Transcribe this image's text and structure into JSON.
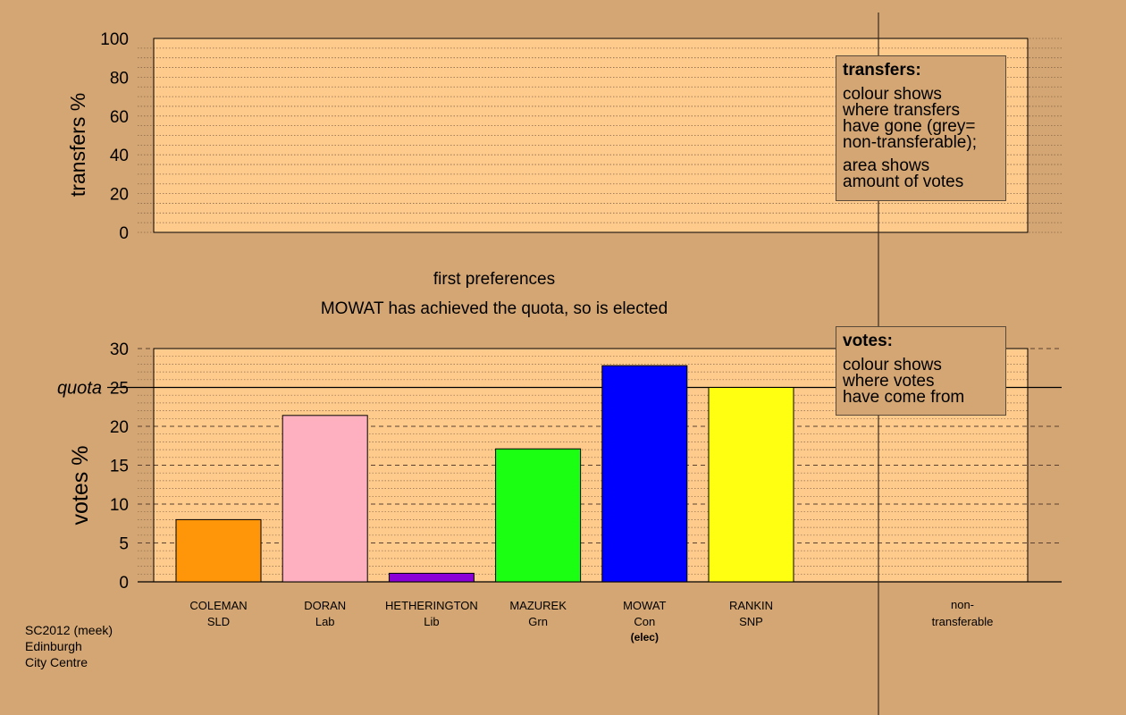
{
  "colors": {
    "background": "#d4a673",
    "plot_background": "#fecb8d",
    "coleman": "#ff9509",
    "doran": "#ffb0c0",
    "hetherington": "#8b00d6",
    "mazurek": "#1bff12",
    "mowat": "#0000ff",
    "rankin": "#ffff12"
  },
  "transfers_note": {
    "title": "transfers:",
    "lines_a": [
      "colour shows",
      "where transfers",
      "have gone (grey=",
      "non-transferable);"
    ],
    "lines_b": [
      "area shows",
      "amount of votes"
    ]
  },
  "votes_note": {
    "title": "votes:",
    "lines": [
      "colour shows",
      "where votes",
      "have come from"
    ]
  },
  "source": [
    "SC2012 (meek)",
    "Edinburgh",
    "City Centre"
  ],
  "chart_data": [
    {
      "type": "bar",
      "ylabel": "transfers %",
      "ylim": [
        0,
        100
      ],
      "yticks": [
        0,
        20,
        40,
        60,
        80,
        100
      ],
      "grid": true,
      "series": []
    },
    {
      "type": "bar",
      "title": "first preferences",
      "subtitle": "MOWAT has achieved the quota, so is elected",
      "ylabel": "votes %",
      "ylim": [
        0,
        30
      ],
      "yticks": [
        0,
        5,
        10,
        15,
        20,
        25,
        30
      ],
      "quota": 25,
      "quota_label": "quota",
      "grid": true,
      "categories": [
        "COLEMAN",
        "DORAN",
        "HETHERINGTON",
        "MAZUREK",
        "MOWAT",
        "RANKIN"
      ],
      "parties": [
        "SLD",
        "Lab",
        "Lib",
        "Grn",
        "Con",
        "SNP"
      ],
      "notes": [
        "",
        "",
        "",
        "",
        "(elec)",
        ""
      ],
      "values": [
        8.0,
        21.4,
        1.1,
        17.1,
        27.8,
        25.0
      ],
      "extra_category": "non-\ntransferable"
    }
  ]
}
